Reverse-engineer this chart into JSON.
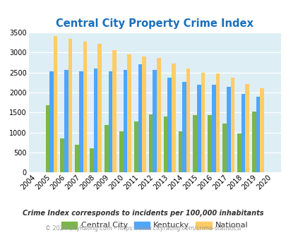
{
  "title": "Central City Property Crime Index",
  "years": [
    2004,
    2005,
    2006,
    2007,
    2008,
    2009,
    2010,
    2011,
    2012,
    2013,
    2014,
    2015,
    2016,
    2017,
    2018,
    2019,
    2020
  ],
  "central_city": [
    0,
    1680,
    850,
    700,
    600,
    1180,
    1030,
    1270,
    1450,
    1400,
    1030,
    1430,
    1430,
    1220,
    980,
    1530,
    0
  ],
  "kentucky": [
    0,
    2530,
    2560,
    2530,
    2600,
    2530,
    2560,
    2700,
    2560,
    2380,
    2260,
    2190,
    2200,
    2140,
    1970,
    1900,
    0
  ],
  "national": [
    0,
    3420,
    3340,
    3270,
    3220,
    3060,
    2960,
    2910,
    2860,
    2730,
    2600,
    2500,
    2470,
    2370,
    2210,
    2110,
    0
  ],
  "central_city_color": "#7ab648",
  "kentucky_color": "#4da6ff",
  "national_color": "#ffcc66",
  "bg_color": "#deeef5",
  "ylim": [
    0,
    3500
  ],
  "yticks": [
    0,
    500,
    1000,
    1500,
    2000,
    2500,
    3000,
    3500
  ],
  "legend_labels": [
    "Central City",
    "Kentucky",
    "National"
  ],
  "footnote": "Crime Index corresponds to incidents per 100,000 inhabitants",
  "copyright": "© 2024 CityRating.com - https://www.cityrating.com/crime-statistics/",
  "title_color": "#1a6fba",
  "footnote_color": "#333333",
  "copyright_color": "#999999",
  "legend_text_color": "#333333"
}
